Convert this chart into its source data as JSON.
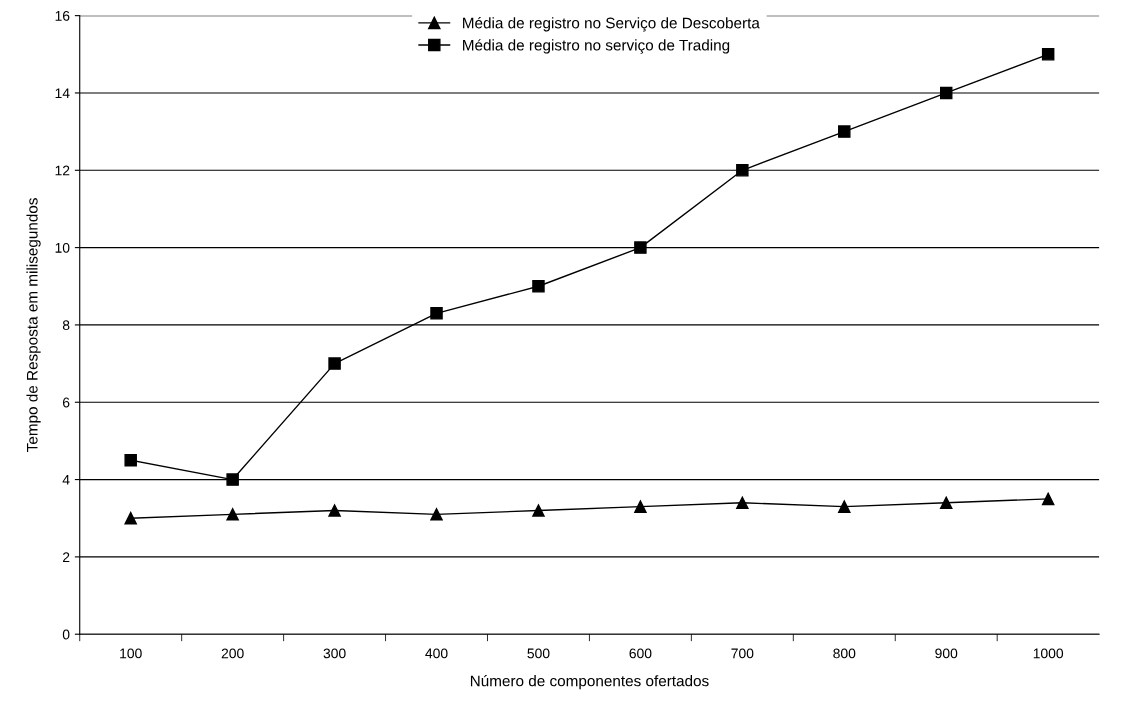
{
  "chart_data": {
    "type": "line",
    "xlabel": "Número de componentes ofertados",
    "ylabel": "Tempo de Resposta em milisegundos",
    "categories": [
      "100",
      "200",
      "300",
      "400",
      "500",
      "600",
      "700",
      "800",
      "900",
      "1000"
    ],
    "series": [
      {
        "name": "Média de registro no Serviço de Descoberta",
        "color": "#000000",
        "marker": "triangle",
        "values": [
          3.0,
          3.1,
          3.2,
          3.1,
          3.2,
          3.3,
          3.4,
          3.3,
          3.4,
          3.5
        ]
      },
      {
        "name": "Média de registro no serviço de Trading",
        "color": "#000000",
        "marker": "square",
        "values": [
          4.5,
          4.0,
          7.0,
          8.3,
          9.0,
          10.0,
          12.0,
          13.0,
          14.0,
          15.0
        ]
      }
    ],
    "ylim": [
      0,
      16
    ],
    "yticks": [
      0,
      2,
      4,
      6,
      8,
      10,
      12,
      14,
      16
    ],
    "grid": "y",
    "legend": "top",
    "line_style": "solid"
  }
}
